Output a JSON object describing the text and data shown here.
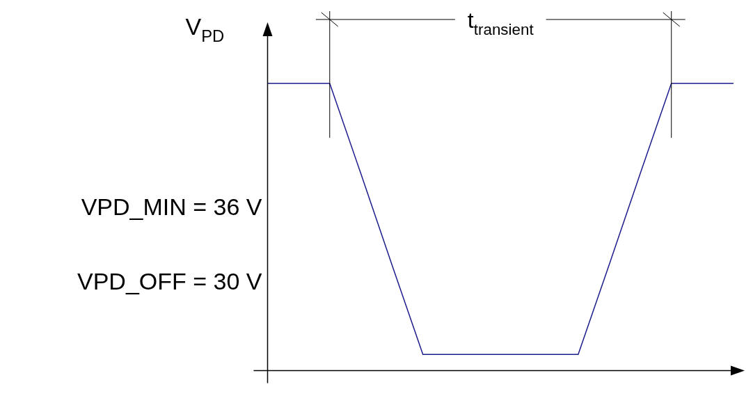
{
  "chart_data": {
    "type": "line",
    "ylabel": "V$_{PD}$",
    "categories": [
      null,
      null,
      null,
      null,
      null,
      null,
      null,
      null,
      null,
      null,
      null,
      null,
      null,
      null,
      null,
      null
    ],
    "series": [
      {
        "color": "#1c1c8c",
        "values": [
          46,
          46,
          46,
          38.8,
          31.5,
          24.3,
          24.3,
          24.3,
          24.3,
          24.3,
          24.3,
          31.5,
          38.8,
          46,
          46,
          46
        ]
      }
    ],
    "ylim": [
      23,
      50
    ],
    "yticks": [
      {
        "value": 30,
        "label": "VPD_OFF = 30 V"
      },
      {
        "value": 36,
        "label": "VPD_MIN = 36 V"
      }
    ],
    "tick_labels": "y",
    "grid": false,
    "legend": false,
    "marker": "none",
    "line_style": "solid",
    "annotations": [
      "t$_{transient}$"
    ]
  }
}
